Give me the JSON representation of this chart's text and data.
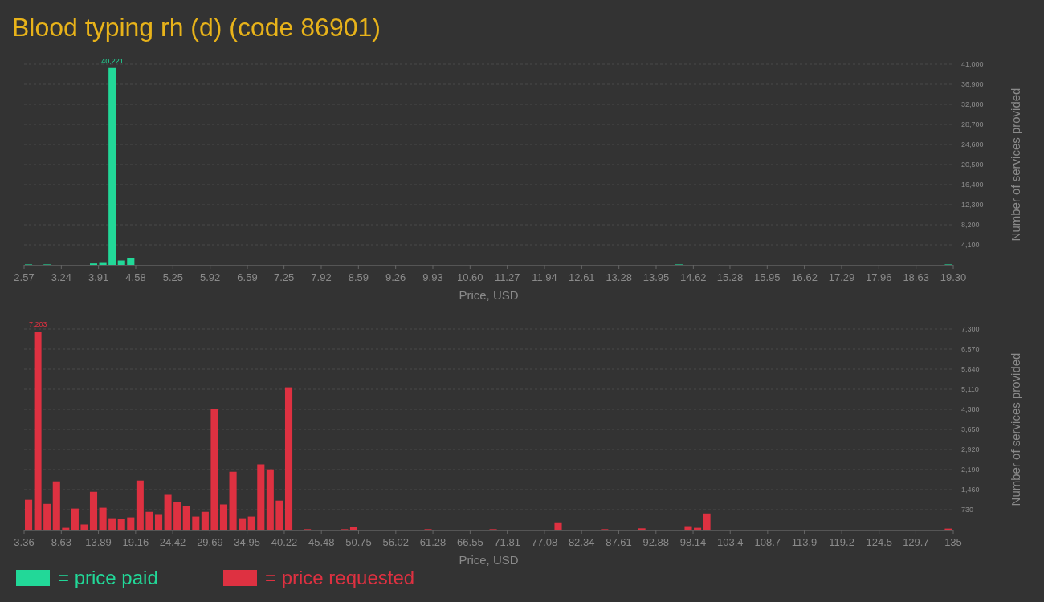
{
  "chart_data": [
    {
      "type": "histogram",
      "title": "Blood typing rh (d) (code 86901)",
      "xlabel": "Price, USD",
      "ylabel": "Number of services provided",
      "legend": "bottom",
      "grid": "y",
      "bins": [
        2.57,
        2.737,
        2.905,
        3.072,
        3.239,
        3.407,
        3.574,
        3.741,
        3.908,
        4.076,
        4.243,
        4.41,
        4.578,
        4.745,
        4.912,
        5.08,
        5.247,
        5.414,
        5.581,
        5.749,
        5.916,
        6.083,
        6.251,
        6.418,
        6.585,
        6.752,
        6.92,
        7.087,
        7.254,
        7.422,
        7.589,
        7.756,
        7.924,
        8.091,
        8.258,
        8.426,
        8.593,
        8.76,
        8.927,
        9.095,
        9.262,
        9.429,
        9.597,
        9.764,
        9.931,
        10.099,
        10.266,
        10.433,
        10.6,
        10.768,
        10.935,
        11.102,
        11.27,
        11.437,
        11.604,
        11.772,
        11.939,
        12.106,
        12.273,
        12.441,
        12.608,
        12.775,
        12.943,
        13.11,
        13.277,
        13.445,
        13.612,
        13.779,
        13.946,
        14.114,
        14.281,
        14.448,
        14.616,
        14.783,
        14.95,
        15.118,
        15.285,
        15.452,
        15.619,
        15.787,
        15.954,
        16.121,
        16.289,
        16.456,
        16.623,
        16.791,
        16.958,
        17.125,
        17.292,
        17.46,
        17.627,
        17.794,
        17.962,
        18.129,
        18.296,
        18.464,
        18.631,
        18.798,
        18.965,
        19.133,
        19.3
      ],
      "series": [
        {
          "name": "= price paid",
          "color": "#22d898",
          "values": [
            100,
            0,
            100,
            0,
            0,
            0,
            0,
            300,
            400,
            40221,
            900,
            1400,
            0,
            0,
            0,
            0,
            0,
            0,
            0,
            0,
            0,
            0,
            0,
            0,
            0,
            0,
            0,
            0,
            0,
            0,
            0,
            0,
            0,
            0,
            0,
            0,
            0,
            0,
            0,
            0,
            0,
            0,
            0,
            0,
            0,
            0,
            0,
            0,
            0,
            0,
            0,
            0,
            0,
            0,
            0,
            0,
            0,
            0,
            0,
            0,
            0,
            0,
            0,
            0,
            0,
            0,
            0,
            0,
            0,
            0,
            100,
            0,
            0,
            0,
            0,
            0,
            0,
            0,
            0,
            0,
            0,
            0,
            0,
            0,
            0,
            0,
            0,
            0,
            0,
            0,
            0,
            0,
            0,
            0,
            0,
            0,
            0,
            0,
            0,
            100
          ],
          "value_labels": [
            null,
            null,
            null,
            null,
            null,
            null,
            null,
            null,
            null,
            "40,221",
            null,
            null,
            null,
            null,
            null,
            null,
            null,
            null,
            null,
            null,
            null,
            null,
            null,
            null,
            null,
            null,
            null,
            null,
            null,
            null,
            null,
            null,
            null,
            null,
            null,
            null,
            null,
            null,
            null,
            null,
            null,
            null,
            null,
            null,
            null,
            null,
            null,
            null,
            null,
            null,
            null,
            null,
            null,
            null,
            null,
            null,
            null,
            null,
            null,
            null,
            null,
            null,
            null,
            null,
            null,
            null,
            null,
            null,
            null,
            null,
            null,
            null,
            null,
            null,
            null,
            null,
            null,
            null,
            null,
            null,
            null,
            null,
            null,
            null,
            null,
            null,
            null,
            null,
            null,
            null,
            null,
            null,
            null,
            null,
            null,
            null,
            null,
            null,
            null,
            null
          ]
        }
      ],
      "xlim": [
        2.57,
        19.3
      ],
      "xticks": [
        2.57,
        3.24,
        3.91,
        4.58,
        5.25,
        5.92,
        6.59,
        7.25,
        7.92,
        8.59,
        9.26,
        9.93,
        {
          "value": 10.6,
          "label": "10.60"
        },
        11.27,
        11.94,
        12.61,
        13.28,
        13.95,
        14.62,
        15.28,
        15.95,
        16.62,
        17.29,
        17.96,
        18.63,
        {
          "value": 19.3,
          "label": "19.30"
        }
      ],
      "ylim": [
        0,
        41000
      ],
      "yticks": [
        {
          "value": 4100,
          "label": "4,100"
        },
        {
          "value": 8200,
          "label": "8,200"
        },
        {
          "value": 12300,
          "label": "12,300"
        },
        {
          "value": 16400,
          "label": "16,400"
        },
        {
          "value": 20500,
          "label": "20,500"
        },
        {
          "value": 24600,
          "label": "24,600"
        },
        {
          "value": 28700,
          "label": "28,700"
        },
        {
          "value": 32800,
          "label": "32,800"
        },
        {
          "value": 36900,
          "label": "36,900"
        },
        {
          "value": 41000,
          "label": "41,000"
        }
      ]
    },
    {
      "type": "histogram",
      "xlabel": "Price, USD",
      "ylabel": "Number of services provided",
      "legend": "bottom",
      "grid": "y",
      "bins": [
        3.36,
        4.68,
        5.99,
        7.31,
        8.63,
        9.94,
        11.26,
        12.57,
        13.89,
        15.21,
        16.52,
        17.84,
        19.16,
        20.47,
        21.79,
        23.11,
        24.42,
        25.74,
        27.06,
        28.37,
        29.69,
        31.0,
        32.32,
        33.64,
        34.95,
        36.27,
        37.59,
        38.9,
        40.22,
        41.54,
        42.85,
        44.17,
        45.48,
        46.8,
        48.12,
        49.43,
        50.75,
        52.07,
        53.38,
        54.7,
        56.02,
        57.33,
        58.65,
        59.97,
        61.28,
        62.6,
        63.91,
        65.23,
        66.55,
        67.86,
        69.18,
        70.5,
        71.81,
        73.13,
        74.45,
        75.76,
        77.08,
        78.39,
        79.71,
        81.03,
        82.34,
        83.66,
        84.98,
        86.29,
        87.61,
        88.93,
        90.24,
        91.56,
        92.88,
        94.19,
        95.51,
        96.82,
        98.14,
        99.46,
        100.77,
        102.09,
        103.41,
        104.72,
        106.04,
        107.36,
        108.67,
        109.99,
        111.31,
        112.62,
        113.94,
        115.25,
        116.57,
        117.89,
        119.2,
        120.52,
        121.84,
        123.15,
        124.47,
        125.79,
        127.1,
        128.42,
        129.73,
        131.05,
        132.37,
        133.68,
        135
      ],
      "series": [
        {
          "name": "= price requested",
          "color": "#de3141",
          "values": [
            1090,
            7203,
            940,
            1760,
            70,
            770,
            190,
            1380,
            800,
            420,
            390,
            450,
            1790,
            650,
            570,
            1270,
            1000,
            860,
            480,
            650,
            4390,
            920,
            2110,
            420,
            480,
            2380,
            2200,
            1060,
            5180,
            0,
            20,
            0,
            0,
            0,
            20,
            100,
            0,
            0,
            0,
            0,
            0,
            0,
            0,
            20,
            0,
            0,
            0,
            0,
            0,
            0,
            20,
            0,
            0,
            0,
            0,
            0,
            0,
            270,
            0,
            0,
            0,
            0,
            20,
            0,
            0,
            0,
            50,
            0,
            0,
            0,
            0,
            130,
            70,
            590,
            0,
            0,
            0,
            0,
            0,
            0,
            0,
            0,
            0,
            0,
            0,
            0,
            0,
            0,
            0,
            0,
            0,
            0,
            0,
            0,
            0,
            0,
            0,
            0,
            0,
            40
          ],
          "value_labels": [
            null,
            "7,203",
            null,
            null,
            null,
            null,
            null,
            null,
            null,
            null,
            null,
            null,
            null,
            null,
            null,
            null,
            null,
            null,
            null,
            null,
            null,
            null,
            null,
            null,
            null,
            null,
            null,
            null,
            null,
            null,
            null,
            null,
            null,
            null,
            null,
            null,
            null,
            null,
            null,
            null,
            null,
            null,
            null,
            null,
            null,
            null,
            null,
            null,
            null,
            null,
            null,
            null,
            null,
            null,
            null,
            null,
            null,
            null,
            null,
            null,
            null,
            null,
            null,
            null,
            null,
            null,
            null,
            null,
            null,
            null,
            null,
            null,
            null,
            null,
            null,
            null,
            null,
            null,
            null,
            null,
            null,
            null,
            null,
            null,
            null,
            null,
            null,
            null,
            null,
            null,
            null,
            null,
            null,
            null,
            null,
            null,
            null,
            null,
            null,
            null
          ]
        }
      ],
      "xlim": [
        3.36,
        135
      ],
      "xticks": [
        3.36,
        8.63,
        13.89,
        19.16,
        24.42,
        29.69,
        34.95,
        40.22,
        45.48,
        50.75,
        56.02,
        61.28,
        66.55,
        71.81,
        77.08,
        82.34,
        87.61,
        92.88,
        98.14,
        103.4,
        108.7,
        113.9,
        119.2,
        124.5,
        129.7,
        135
      ],
      "ylim": [
        0,
        7300
      ],
      "yticks": [
        730,
        {
          "value": 1460,
          "label": "1,460"
        },
        {
          "value": 2190,
          "label": "2,190"
        },
        {
          "value": 2920,
          "label": "2,920"
        },
        {
          "value": 3650,
          "label": "3,650"
        },
        {
          "value": 4380,
          "label": "4,380"
        },
        {
          "value": 5110,
          "label": "5,110"
        },
        {
          "value": 5840,
          "label": "5,840"
        },
        {
          "value": 6570,
          "label": "6,570"
        },
        {
          "value": 7300,
          "label": "7,300"
        }
      ]
    }
  ]
}
